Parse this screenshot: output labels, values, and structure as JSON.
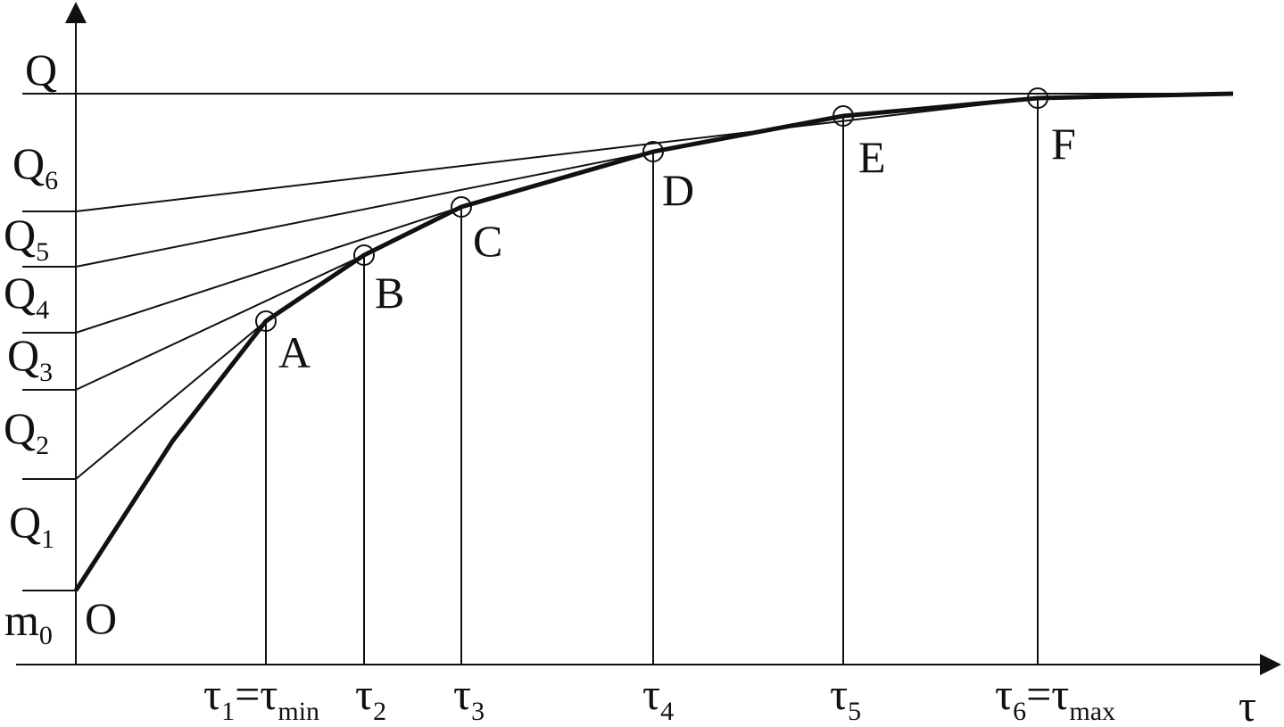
{
  "axis_labels": {
    "y": "Q",
    "x": "τ"
  },
  "q_labels": [
    {
      "text": "Q",
      "sub": "6"
    },
    {
      "text": "Q",
      "sub": "5"
    },
    {
      "text": "Q",
      "sub": "4"
    },
    {
      "text": "Q",
      "sub": "3"
    },
    {
      "text": "Q",
      "sub": "2"
    },
    {
      "text": "Q",
      "sub": "1"
    }
  ],
  "m0": {
    "text": "m",
    "sub": "0"
  },
  "points": [
    "O",
    "A",
    "B",
    "C",
    "D",
    "E",
    "F"
  ],
  "tau_labels": [
    {
      "parts": [
        {
          "text": "τ",
          "sub": "1"
        },
        {
          "text": "=τ",
          "sub": "min"
        }
      ]
    },
    {
      "parts": [
        {
          "text": "τ",
          "sub": "2"
        }
      ]
    },
    {
      "parts": [
        {
          "text": "τ",
          "sub": "3"
        }
      ]
    },
    {
      "parts": [
        {
          "text": "τ",
          "sub": "4"
        }
      ]
    },
    {
      "parts": [
        {
          "text": "τ",
          "sub": "5"
        }
      ]
    },
    {
      "parts": [
        {
          "text": "τ",
          "sub": "6"
        },
        {
          "text": "=τ",
          "sub": "max"
        }
      ]
    }
  ]
}
